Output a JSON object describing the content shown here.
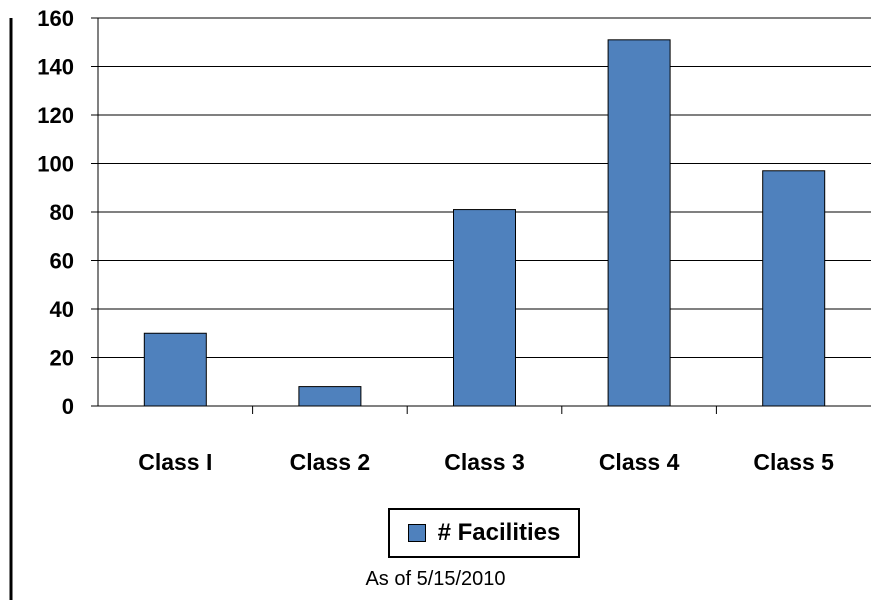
{
  "chart_data": {
    "type": "bar",
    "categories": [
      "Class I",
      "Class 2",
      "Class 3",
      "Class 4",
      "Class 5"
    ],
    "series": [
      {
        "name": "# Facilities",
        "values": [
          30,
          8,
          81,
          151,
          97
        ]
      }
    ],
    "ylim": [
      0,
      160
    ],
    "yticks": [
      0,
      20,
      40,
      60,
      80,
      100,
      120,
      140,
      160
    ],
    "grid": true,
    "legend": "bottom-center",
    "colors": {
      "bar": "#4F81BD",
      "bar_edge": "#000000",
      "grid": "#000000"
    }
  },
  "note": "As of 5/15/2010"
}
